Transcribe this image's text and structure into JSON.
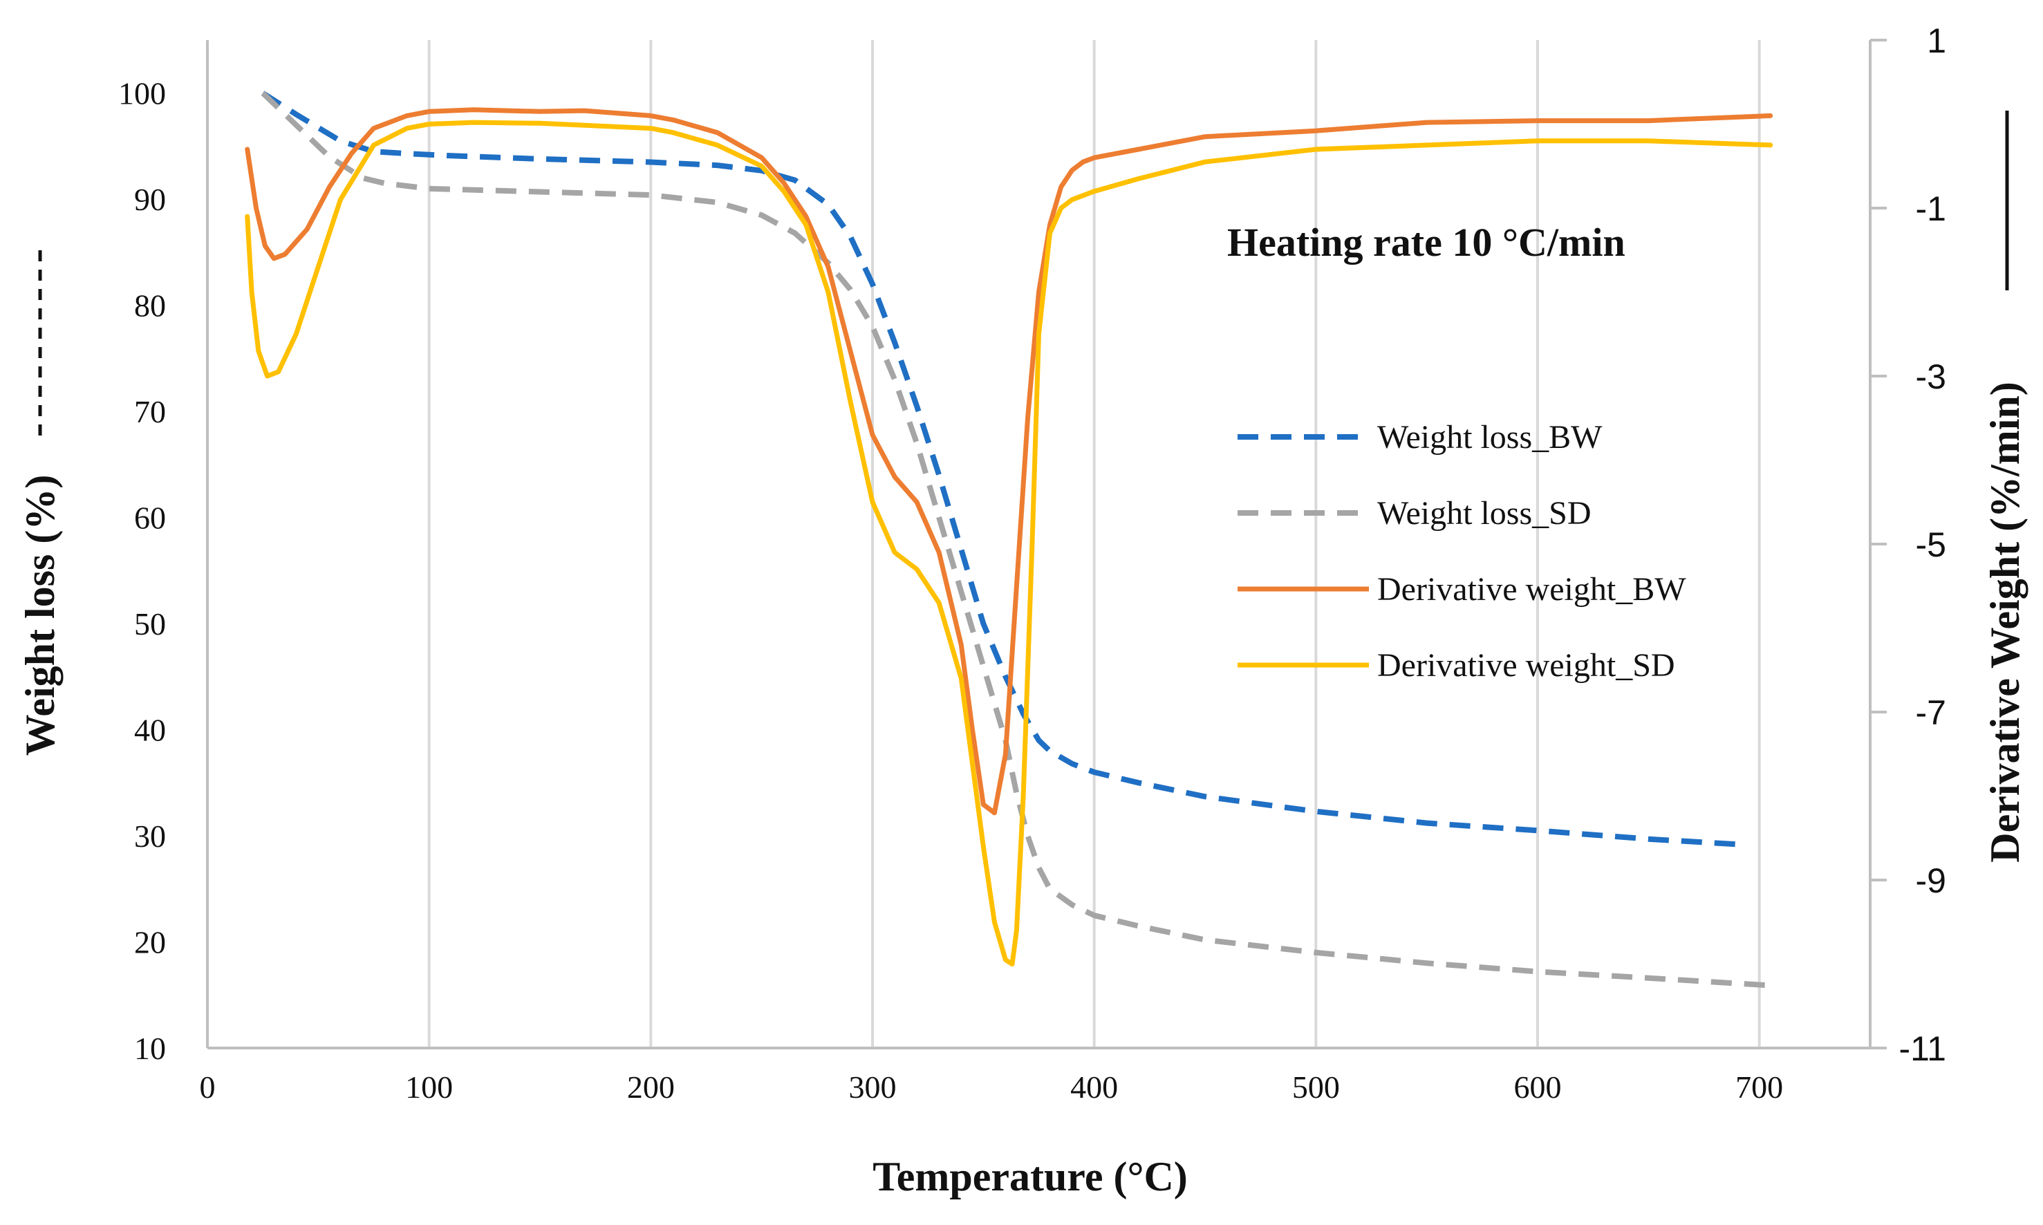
{
  "chart_data": {
    "type": "line",
    "title": "",
    "annotation": "Heating rate 10 °C/min",
    "xlabel": "Temperature (°C)",
    "ylabel": "Weight loss (%)",
    "y2label": "Derivative Weight  (%/min)",
    "xlim": [
      0,
      750
    ],
    "ylim": [
      10,
      105
    ],
    "y2lim": [
      -11,
      1
    ],
    "x_ticks": [
      0,
      100,
      200,
      300,
      400,
      500,
      600,
      700
    ],
    "y_ticks": [
      10,
      20,
      30,
      40,
      50,
      60,
      70,
      80,
      90,
      100
    ],
    "y2_ticks": [
      1,
      -1,
      -3,
      -5,
      -7,
      -9,
      -11
    ],
    "grid": "vertical",
    "legend_position": "center-right",
    "series": [
      {
        "name": "Weight loss_BW",
        "axis": "left",
        "style": "dashed",
        "color": "#1F6FC4",
        "x": [
          25,
          40,
          60,
          75,
          90,
          110,
          150,
          200,
          230,
          250,
          265,
          280,
          290,
          300,
          310,
          320,
          330,
          340,
          350,
          360,
          368,
          375,
          380,
          390,
          400,
          420,
          450,
          500,
          550,
          600,
          650,
          690
        ],
        "y": [
          100,
          98,
          95.5,
          94.5,
          94.3,
          94.1,
          93.8,
          93.5,
          93.2,
          92.7,
          91.8,
          89.5,
          86.5,
          82,
          76.5,
          70.5,
          64,
          57,
          50,
          45,
          41.5,
          39,
          38,
          36.8,
          36,
          35,
          33.7,
          32.3,
          31.2,
          30.5,
          29.7,
          29.2
        ]
      },
      {
        "name": "Weight loss_SD",
        "axis": "left",
        "style": "dashed",
        "color": "#A5A5A5",
        "x": [
          25,
          40,
          55,
          70,
          80,
          100,
          150,
          200,
          230,
          250,
          265,
          280,
          290,
          300,
          310,
          320,
          330,
          340,
          350,
          360,
          365,
          370,
          375,
          380,
          390,
          400,
          420,
          450,
          500,
          550,
          600,
          650,
          705
        ],
        "y": [
          100,
          97,
          94,
          92,
          91.5,
          91,
          90.7,
          90.4,
          89.7,
          88.5,
          86.8,
          84,
          81.5,
          78,
          73,
          67,
          60,
          53,
          46,
          39,
          34,
          30,
          27,
          25,
          23.5,
          22.5,
          21.5,
          20.2,
          19,
          18,
          17.2,
          16.6,
          15.9
        ]
      },
      {
        "name": "Derivative weight_BW",
        "axis": "right",
        "style": "solid",
        "color": "#ED7D31",
        "x": [
          18,
          22,
          26,
          30,
          35,
          45,
          55,
          65,
          75,
          90,
          100,
          120,
          150,
          170,
          200,
          210,
          230,
          250,
          260,
          270,
          280,
          290,
          300,
          310,
          320,
          330,
          340,
          345,
          350,
          355,
          360,
          365,
          370,
          375,
          380,
          385,
          390,
          395,
          400,
          420,
          450,
          500,
          550,
          600,
          650,
          705
        ],
        "y": [
          -0.3,
          -1.0,
          -1.45,
          -1.6,
          -1.55,
          -1.25,
          -0.75,
          -0.35,
          -0.05,
          0.1,
          0.15,
          0.17,
          0.15,
          0.16,
          0.1,
          0.05,
          -0.1,
          -0.4,
          -0.7,
          -1.1,
          -1.7,
          -2.7,
          -3.7,
          -4.2,
          -4.5,
          -5.1,
          -6.2,
          -7.2,
          -8.1,
          -8.2,
          -7.5,
          -5.5,
          -3.5,
          -2.0,
          -1.2,
          -0.75,
          -0.55,
          -0.45,
          -0.4,
          -0.3,
          -0.15,
          -0.08,
          0.02,
          0.04,
          0.04,
          0.1
        ]
      },
      {
        "name": "Derivative weight_SD",
        "axis": "right",
        "style": "solid",
        "color": "#FFC000",
        "x": [
          18,
          20,
          23,
          27,
          32,
          40,
          50,
          60,
          75,
          90,
          100,
          120,
          150,
          200,
          210,
          230,
          250,
          260,
          270,
          280,
          290,
          300,
          310,
          320,
          330,
          340,
          350,
          355,
          360,
          363,
          365,
          368,
          372,
          375,
          380,
          385,
          390,
          400,
          420,
          450,
          500,
          550,
          600,
          650,
          705
        ],
        "y": [
          -1.1,
          -2.0,
          -2.7,
          -3.0,
          -2.95,
          -2.5,
          -1.7,
          -0.9,
          -0.25,
          -0.05,
          0.0,
          0.02,
          0.01,
          -0.05,
          -0.1,
          -0.25,
          -0.5,
          -0.8,
          -1.2,
          -2.0,
          -3.3,
          -4.5,
          -5.1,
          -5.3,
          -5.7,
          -6.6,
          -8.6,
          -9.5,
          -9.95,
          -10.0,
          -9.6,
          -8.0,
          -5.0,
          -2.5,
          -1.3,
          -1.0,
          -0.9,
          -0.8,
          -0.65,
          -0.45,
          -0.3,
          -0.25,
          -0.2,
          -0.2,
          -0.25
        ]
      }
    ]
  }
}
